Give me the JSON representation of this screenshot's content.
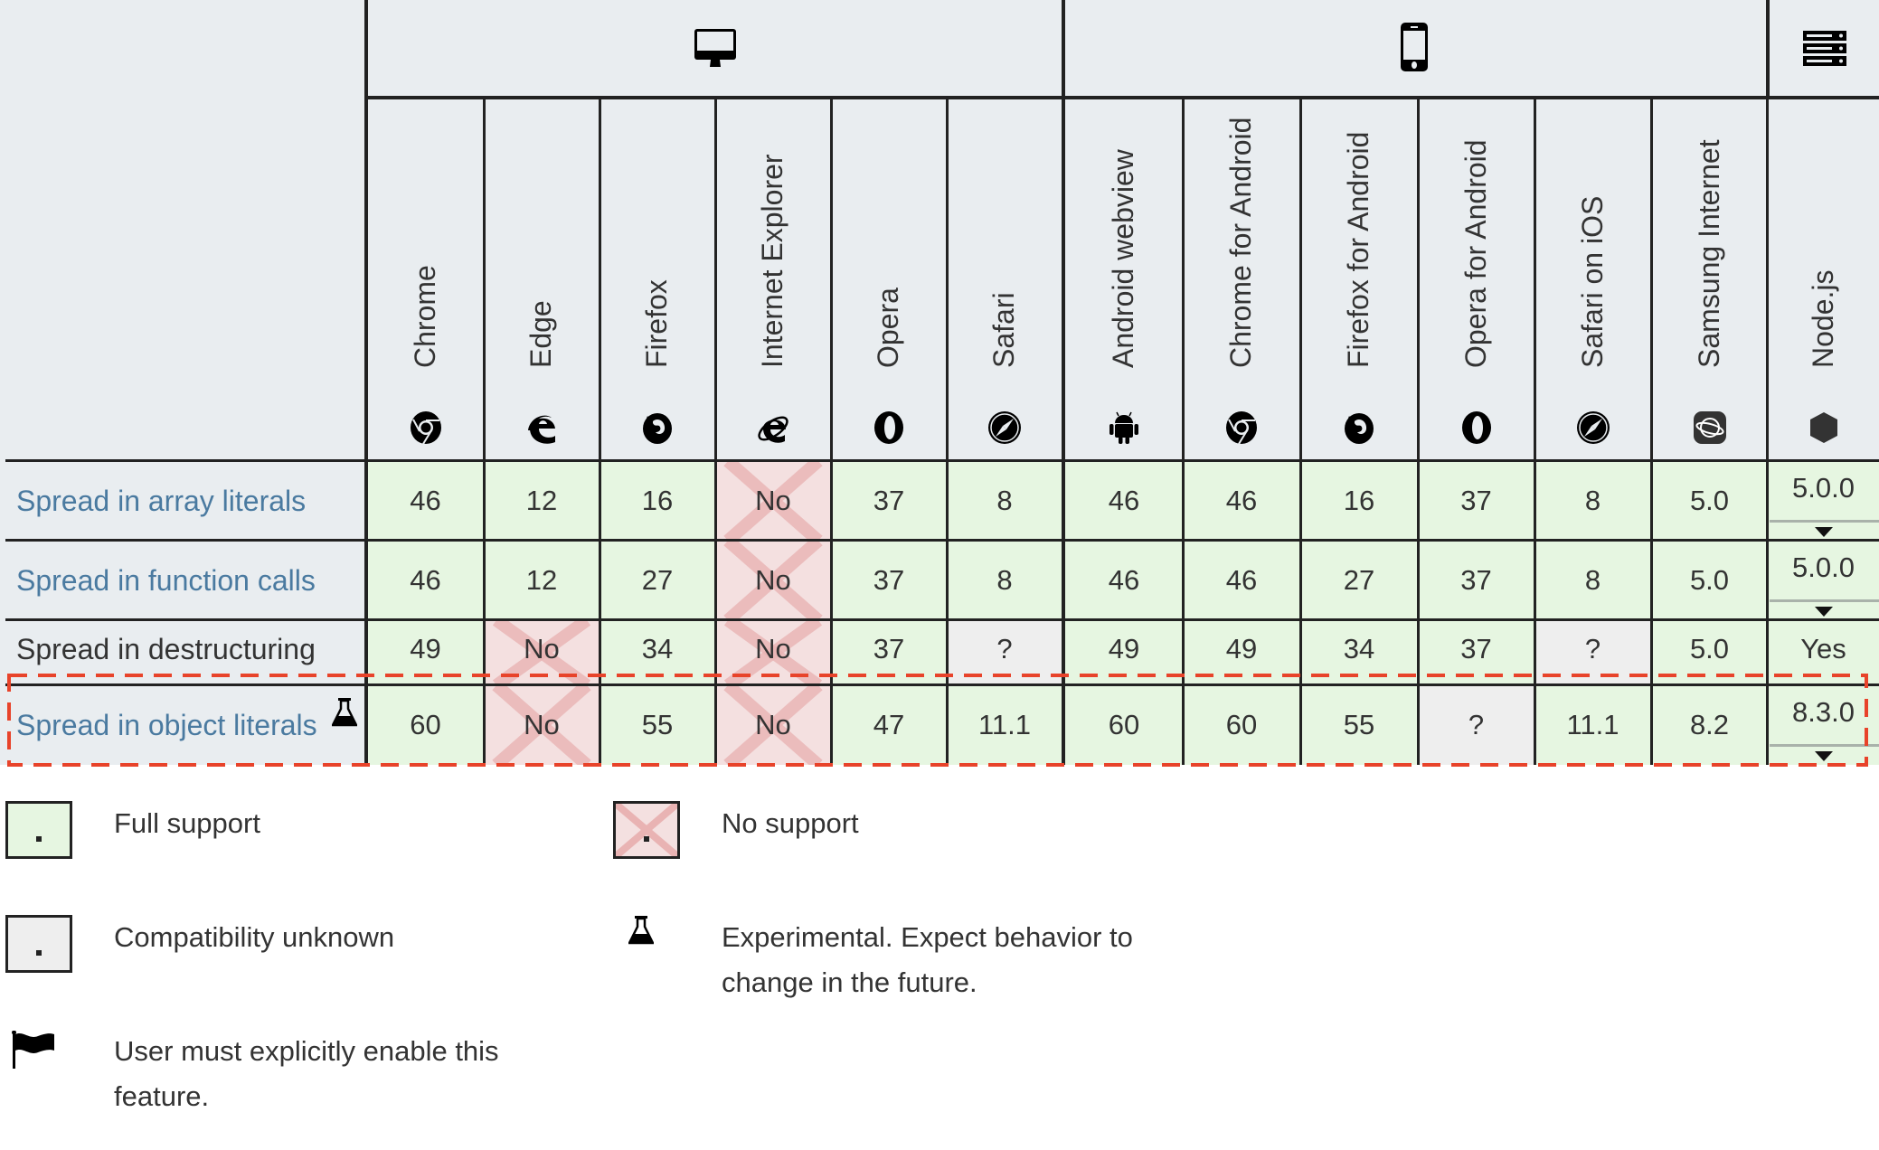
{
  "groups": [
    {
      "name": "desktop",
      "icon": "desktop-icon"
    },
    {
      "name": "mobile",
      "icon": "mobile-icon"
    },
    {
      "name": "server",
      "icon": "server-icon"
    }
  ],
  "browsers": [
    {
      "label": "Chrome",
      "icon": "chrome-icon",
      "group": "desktop"
    },
    {
      "label": "Edge",
      "icon": "edge-icon",
      "group": "desktop"
    },
    {
      "label": "Firefox",
      "icon": "firefox-icon",
      "group": "desktop"
    },
    {
      "label": "Internet Explorer",
      "icon": "ie-icon",
      "group": "desktop"
    },
    {
      "label": "Opera",
      "icon": "opera-icon",
      "group": "desktop"
    },
    {
      "label": "Safari",
      "icon": "safari-icon",
      "group": "desktop"
    },
    {
      "label": "Android webview",
      "icon": "android-icon",
      "group": "mobile"
    },
    {
      "label": "Chrome for Android",
      "icon": "chrome-icon",
      "group": "mobile"
    },
    {
      "label": "Firefox for Android",
      "icon": "firefox-icon",
      "group": "mobile"
    },
    {
      "label": "Opera for Android",
      "icon": "opera-icon",
      "group": "mobile"
    },
    {
      "label": "Safari on iOS",
      "icon": "safari-icon",
      "group": "mobile"
    },
    {
      "label": "Samsung Internet",
      "icon": "samsung-internet-icon",
      "group": "mobile"
    },
    {
      "label": "Node.js",
      "icon": "nodejs-icon",
      "group": "server"
    }
  ],
  "rows": [
    {
      "feature": "Spread in array literals",
      "link": true,
      "experimental": false,
      "cells": [
        {
          "v": "46",
          "s": "full"
        },
        {
          "v": "12",
          "s": "full"
        },
        {
          "v": "16",
          "s": "full"
        },
        {
          "v": "No",
          "s": "no"
        },
        {
          "v": "37",
          "s": "full"
        },
        {
          "v": "8",
          "s": "full"
        },
        {
          "v": "46",
          "s": "full"
        },
        {
          "v": "46",
          "s": "full"
        },
        {
          "v": "16",
          "s": "full"
        },
        {
          "v": "37",
          "s": "full"
        },
        {
          "v": "8",
          "s": "full"
        },
        {
          "v": "5.0",
          "s": "full"
        },
        {
          "v": "5.0.0",
          "s": "full",
          "expandable": true
        }
      ]
    },
    {
      "feature": "Spread in function calls",
      "link": true,
      "experimental": false,
      "cells": [
        {
          "v": "46",
          "s": "full"
        },
        {
          "v": "12",
          "s": "full"
        },
        {
          "v": "27",
          "s": "full"
        },
        {
          "v": "No",
          "s": "no"
        },
        {
          "v": "37",
          "s": "full"
        },
        {
          "v": "8",
          "s": "full"
        },
        {
          "v": "46",
          "s": "full"
        },
        {
          "v": "46",
          "s": "full"
        },
        {
          "v": "27",
          "s": "full"
        },
        {
          "v": "37",
          "s": "full"
        },
        {
          "v": "8",
          "s": "full"
        },
        {
          "v": "5.0",
          "s": "full"
        },
        {
          "v": "5.0.0",
          "s": "full",
          "expandable": true
        }
      ]
    },
    {
      "feature": "Spread in destructuring",
      "link": false,
      "experimental": false,
      "cells": [
        {
          "v": "49",
          "s": "full"
        },
        {
          "v": "No",
          "s": "no"
        },
        {
          "v": "34",
          "s": "full"
        },
        {
          "v": "No",
          "s": "no"
        },
        {
          "v": "37",
          "s": "full"
        },
        {
          "v": "?",
          "s": "unk"
        },
        {
          "v": "49",
          "s": "full"
        },
        {
          "v": "49",
          "s": "full"
        },
        {
          "v": "34",
          "s": "full"
        },
        {
          "v": "37",
          "s": "full"
        },
        {
          "v": "?",
          "s": "unk"
        },
        {
          "v": "5.0",
          "s": "full"
        },
        {
          "v": "Yes",
          "s": "full"
        }
      ]
    },
    {
      "feature": "Spread in object literals",
      "link": true,
      "experimental": true,
      "highlighted": true,
      "cells": [
        {
          "v": "60",
          "s": "full"
        },
        {
          "v": "No",
          "s": "no"
        },
        {
          "v": "55",
          "s": "full"
        },
        {
          "v": "No",
          "s": "no"
        },
        {
          "v": "47",
          "s": "full"
        },
        {
          "v": "11.1",
          "s": "full"
        },
        {
          "v": "60",
          "s": "full"
        },
        {
          "v": "60",
          "s": "full"
        },
        {
          "v": "55",
          "s": "full"
        },
        {
          "v": "?",
          "s": "unk"
        },
        {
          "v": "11.1",
          "s": "full"
        },
        {
          "v": "8.2",
          "s": "full"
        },
        {
          "v": "8.3.0",
          "s": "full",
          "expandable": true
        }
      ]
    }
  ],
  "legend": {
    "full_support": "Full support",
    "no_support": "No support",
    "unknown": "Compatibility unknown",
    "experimental_line1": "Experimental. Expect behavior to",
    "experimental_line2": "change in the future.",
    "flag_line1": "User must explicitly enable this",
    "flag_line2": "feature."
  },
  "colors": {
    "header_bg": "#e9edf0",
    "full_support": "#e6f6e1",
    "no_support": "#f4e0e0",
    "no_support_x": "#e9b3b3",
    "unknown": "#eeeeee",
    "link": "#4a7aa0",
    "highlight_dash": "#e8432a",
    "border": "#222222"
  }
}
